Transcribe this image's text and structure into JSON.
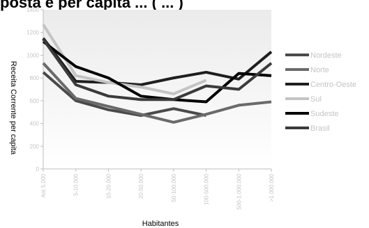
{
  "chart_data": {
    "type": "line",
    "title": "posta e per capita ... ( ... )",
    "xlabel": "Habitantes",
    "ylabel": "Receita Corrente per capita",
    "ylim": [
      0,
      1400
    ],
    "yticks": [
      0,
      200,
      400,
      600,
      800,
      1000,
      1200,
      1400
    ],
    "grid": false,
    "legend_position": "right",
    "categories": [
      "Até 5.000",
      "5-10.000",
      "10-20.000",
      "20-50.000",
      "50-100.000",
      "100-500.000",
      "500-1.000.000",
      ">1.000.000"
    ],
    "series": [
      {
        "name": "Nordeste",
        "color": "#4a4a4a",
        "values": [
          850,
          600,
          520,
          470,
          530,
          470,
          null,
          930
        ]
      },
      {
        "name": "Norte",
        "color": "#6a6a6a",
        "values": [
          930,
          620,
          550,
          480,
          410,
          480,
          560,
          590
        ]
      },
      {
        "name": "Centro-Oeste",
        "color": "#1e1e1e",
        "values": [
          1150,
          770,
          760,
          740,
          800,
          850,
          790,
          1030
        ]
      },
      {
        "name": "Sul",
        "color": "#c4c4c4",
        "values": [
          1270,
          820,
          760,
          720,
          660,
          780,
          null,
          null
        ]
      },
      {
        "name": "Sudeste",
        "color": "#000000",
        "values": [
          1120,
          900,
          800,
          640,
          610,
          590,
          840,
          820
        ]
      },
      {
        "name": "Brasil",
        "color": "#3a3a3a",
        "values": [
          1140,
          740,
          640,
          610,
          610,
          730,
          700,
          930
        ]
      }
    ]
  }
}
